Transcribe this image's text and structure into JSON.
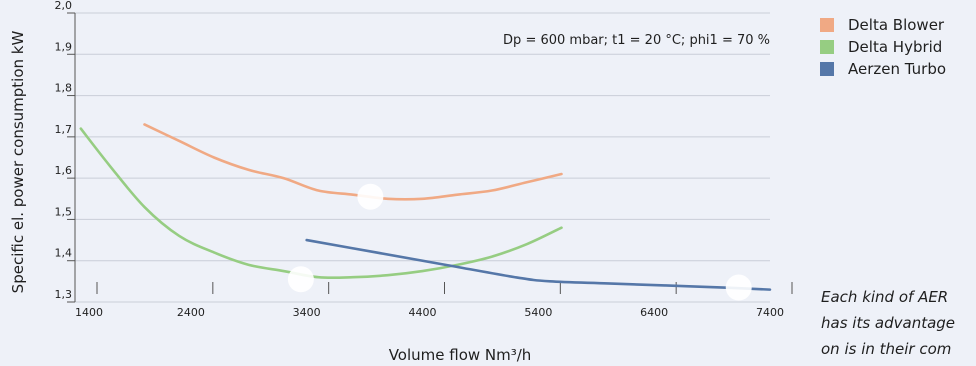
{
  "chart_data": {
    "type": "line",
    "title": "",
    "annotation": "Dp = 600 mbar; t1 = 20 °C; phi1 = 70 %",
    "xlabel": "Volume flow Nm³/h",
    "ylabel": "Specific el. power consumption kW",
    "xlim": [
      1400,
      7400
    ],
    "ylim": [
      1.3,
      2.0
    ],
    "x_ticks": [
      "1400",
      "2400",
      "3400",
      "4400",
      "5400",
      "6400",
      "7400"
    ],
    "x_tick_values": [
      1400,
      2400,
      3400,
      4400,
      5400,
      6400,
      7400
    ],
    "y_ticks": [
      "1,3",
      "1,4",
      "1,5",
      "1,6",
      "1,7",
      "1,8",
      "1,9",
      "2,0"
    ],
    "y_tick_values": [
      1.3,
      1.4,
      1.5,
      1.6,
      1.7,
      1.8,
      1.9,
      2.0
    ],
    "grid": "horizontal",
    "legend_position": "right",
    "series": [
      {
        "name": "Delta Blower",
        "color": "#f0a984",
        "x": [
          2000,
          2300,
          2600,
          2900,
          3200,
          3500,
          3800,
          4100,
          4400,
          4700,
          5000,
          5300,
          5600
        ],
        "y": [
          1.73,
          1.69,
          1.65,
          1.62,
          1.6,
          1.57,
          1.56,
          1.55,
          1.55,
          1.56,
          1.57,
          1.59,
          1.61
        ],
        "highlight": {
          "x": 3950,
          "y": 1.555
        }
      },
      {
        "name": "Delta Hybrid",
        "color": "#96cd82",
        "x": [
          1450,
          1700,
          2000,
          2300,
          2600,
          2900,
          3200,
          3500,
          3800,
          4100,
          4400,
          4700,
          5000,
          5300,
          5600
        ],
        "y": [
          1.72,
          1.63,
          1.53,
          1.46,
          1.42,
          1.39,
          1.375,
          1.36,
          1.36,
          1.365,
          1.375,
          1.39,
          1.41,
          1.44,
          1.48
        ],
        "highlight": {
          "x": 3350,
          "y": 1.355
        }
      },
      {
        "name": "Aerzen Turbo",
        "color": "#5577a8",
        "x": [
          3400,
          4000,
          4600,
          5200,
          5500,
          6000,
          6500,
          7000,
          7400
        ],
        "y": [
          1.45,
          1.42,
          1.39,
          1.36,
          1.35,
          1.345,
          1.34,
          1.335,
          1.33
        ],
        "highlight": {
          "x": 7130,
          "y": 1.335
        }
      }
    ]
  },
  "note": {
    "line1": "Each kind of AER",
    "line2": "has its advantage",
    "line3": "on is in their com"
  }
}
